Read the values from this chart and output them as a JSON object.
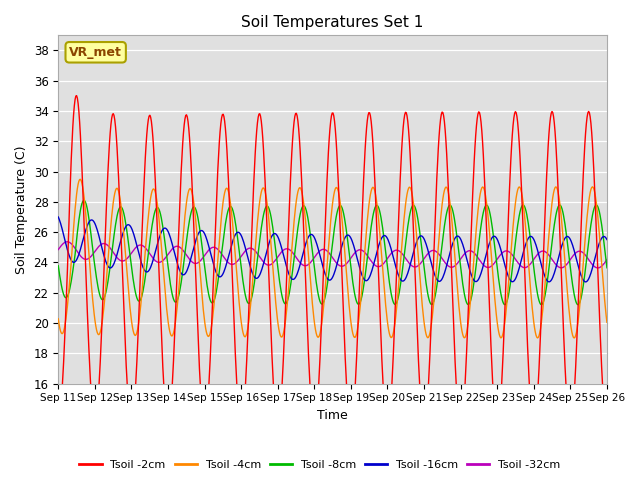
{
  "title": "Soil Temperatures Set 1",
  "xlabel": "Time",
  "ylabel": "Soil Temperature (C)",
  "ylim": [
    16,
    39
  ],
  "yticks": [
    16,
    18,
    20,
    22,
    24,
    26,
    28,
    30,
    32,
    34,
    36,
    38
  ],
  "x_labels": [
    "Sep 11",
    "Sep 12",
    "Sep 13",
    "Sep 14",
    "Sep 15",
    "Sep 16",
    "Sep 17",
    "Sep 18",
    "Sep 19",
    "Sep 20",
    "Sep 21",
    "Sep 22",
    "Sep 23",
    "Sep 24",
    "Sep 25",
    "Sep 26"
  ],
  "series_colors": [
    "#ff0000",
    "#ff8800",
    "#00bb00",
    "#0000cc",
    "#bb00bb"
  ],
  "series_labels": [
    "Tsoil -2cm",
    "Tsoil -4cm",
    "Tsoil -8cm",
    "Tsoil -16cm",
    "Tsoil -32cm"
  ],
  "background_color": "#e0e0e0",
  "annotation_text": "VR_met",
  "n_days": 15,
  "n_per_day": 48
}
